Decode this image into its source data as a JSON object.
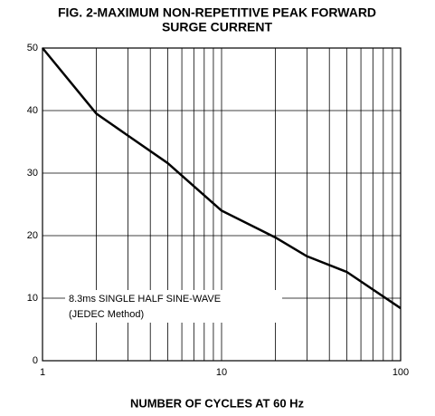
{
  "chart_data": {
    "type": "line",
    "title": [
      "FIG. 2-MAXIMUM NON-REPETITIVE PEAK FORWARD",
      "SURGE CURRENT"
    ],
    "x_label": "NUMBER OF CYCLES AT 60 Hz",
    "annotation": [
      "8.3ms SINGLE HALF SINE-WAVE",
      "(JEDEC Method)"
    ],
    "x": [
      1,
      2,
      3,
      5,
      10,
      20,
      30,
      50,
      100
    ],
    "series": [
      {
        "color": "#000000",
        "values": [
          50,
          39.5,
          36,
          31.6,
          24,
          19.7,
          16.7,
          14.2,
          8.4
        ]
      }
    ],
    "xlim": [
      1,
      100
    ],
    "xticks": [
      1,
      10,
      100
    ],
    "xminor_ticks": [
      2,
      3,
      4,
      5,
      6,
      7,
      8,
      9,
      20,
      30,
      40,
      50,
      60,
      70,
      80,
      90
    ],
    "ylim": [
      0,
      50
    ],
    "yticks": [
      0,
      10,
      20,
      30,
      40,
      50
    ],
    "xscale": "log",
    "grid": true
  }
}
